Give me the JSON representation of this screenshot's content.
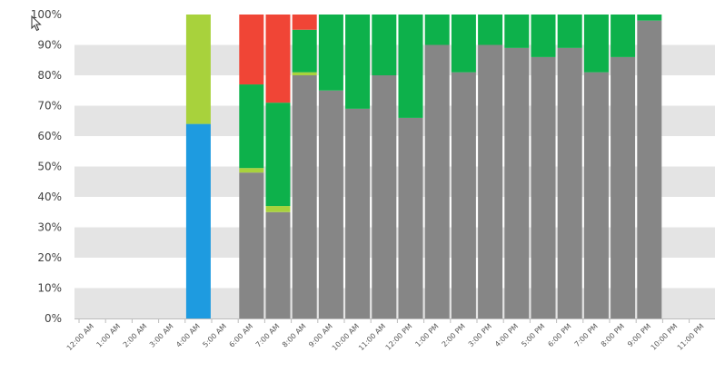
{
  "chart_data": {
    "type": "bar",
    "stacked": true,
    "percent_stacked": true,
    "grid": "alternating horizontal bands",
    "legend": "none",
    "ylim": [
      0,
      100
    ],
    "yticks": [
      "0%",
      "10%",
      "20%",
      "30%",
      "40%",
      "50%",
      "60%",
      "70%",
      "80%",
      "90%",
      "100%"
    ],
    "categories": [
      "12:00 AM",
      "1:00 AM",
      "2:00 AM",
      "3:00 AM",
      "4:00 AM",
      "5:00 AM",
      "6:00 AM",
      "7:00 AM",
      "8:00 AM",
      "9:00 AM",
      "10:00 AM",
      "11:00 AM",
      "12:00 PM",
      "1:00 PM",
      "2:00 PM",
      "3:00 PM",
      "4:00 PM",
      "5:00 PM",
      "6:00 PM",
      "7:00 PM",
      "8:00 PM",
      "9:00 PM",
      "10:00 PM",
      "11:00 PM"
    ],
    "bars": [
      {
        "category": "4:00 AM",
        "segments": [
          {
            "color": "#1e9be0",
            "value": 64
          },
          {
            "color": "#a8d23c",
            "value": 36
          }
        ]
      },
      {
        "category": "6:00 AM",
        "segments": [
          {
            "color": "#868686",
            "value": 48
          },
          {
            "color": "#a8d23c",
            "value": 1.5
          },
          {
            "color": "#0db14b",
            "value": 27.5
          },
          {
            "color": "#f04536",
            "value": 23
          }
        ]
      },
      {
        "category": "7:00 AM",
        "segments": [
          {
            "color": "#868686",
            "value": 35
          },
          {
            "color": "#a8d23c",
            "value": 2
          },
          {
            "color": "#0db14b",
            "value": 34
          },
          {
            "color": "#f04536",
            "value": 29
          }
        ]
      },
      {
        "category": "8:00 AM",
        "segments": [
          {
            "color": "#868686",
            "value": 80
          },
          {
            "color": "#a8d23c",
            "value": 1
          },
          {
            "color": "#0db14b",
            "value": 14
          },
          {
            "color": "#f04536",
            "value": 5
          }
        ]
      },
      {
        "category": "9:00 AM",
        "segments": [
          {
            "color": "#868686",
            "value": 75
          },
          {
            "color": "#0db14b",
            "value": 25
          }
        ]
      },
      {
        "category": "10:00 AM",
        "segments": [
          {
            "color": "#868686",
            "value": 69
          },
          {
            "color": "#0db14b",
            "value": 31
          }
        ]
      },
      {
        "category": "11:00 AM",
        "segments": [
          {
            "color": "#868686",
            "value": 80
          },
          {
            "color": "#0db14b",
            "value": 20
          }
        ]
      },
      {
        "category": "12:00 PM",
        "segments": [
          {
            "color": "#868686",
            "value": 66
          },
          {
            "color": "#0db14b",
            "value": 34
          }
        ]
      },
      {
        "category": "1:00 PM",
        "segments": [
          {
            "color": "#868686",
            "value": 90
          },
          {
            "color": "#0db14b",
            "value": 10
          }
        ]
      },
      {
        "category": "2:00 PM",
        "segments": [
          {
            "color": "#868686",
            "value": 81
          },
          {
            "color": "#0db14b",
            "value": 19
          }
        ]
      },
      {
        "category": "3:00 PM",
        "segments": [
          {
            "color": "#868686",
            "value": 90
          },
          {
            "color": "#0db14b",
            "value": 10
          }
        ]
      },
      {
        "category": "4:00 PM",
        "segments": [
          {
            "color": "#868686",
            "value": 89
          },
          {
            "color": "#0db14b",
            "value": 11
          }
        ]
      },
      {
        "category": "5:00 PM",
        "segments": [
          {
            "color": "#868686",
            "value": 86
          },
          {
            "color": "#0db14b",
            "value": 14
          }
        ]
      },
      {
        "category": "6:00 PM",
        "segments": [
          {
            "color": "#868686",
            "value": 89
          },
          {
            "color": "#0db14b",
            "value": 11
          }
        ]
      },
      {
        "category": "7:00 PM",
        "segments": [
          {
            "color": "#868686",
            "value": 81
          },
          {
            "color": "#0db14b",
            "value": 19
          }
        ]
      },
      {
        "category": "8:00 PM",
        "segments": [
          {
            "color": "#868686",
            "value": 86
          },
          {
            "color": "#0db14b",
            "value": 14
          }
        ]
      },
      {
        "category": "9:00 PM",
        "segments": [
          {
            "color": "#868686",
            "value": 98
          },
          {
            "color": "#0db14b",
            "value": 2
          }
        ]
      }
    ],
    "colors": {
      "band": "#e4e4e4",
      "background": "#ffffff",
      "axis": "#bdbdbd"
    }
  },
  "cursor": {
    "icon": "mouse-pointer-icon"
  }
}
